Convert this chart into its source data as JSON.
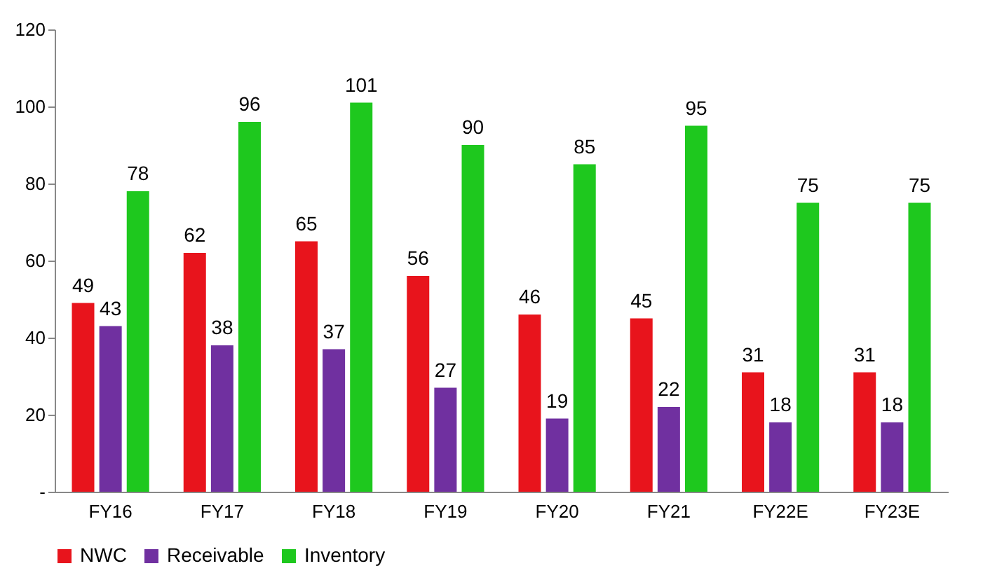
{
  "chart_data": {
    "type": "bar",
    "categories": [
      "FY16",
      "FY17",
      "FY18",
      "FY19",
      "FY20",
      "FY21",
      "FY22E",
      "FY23E"
    ],
    "series": [
      {
        "name": "NWC",
        "color": "#e8141c",
        "values": [
          49,
          62,
          65,
          56,
          46,
          45,
          31,
          31
        ]
      },
      {
        "name": "Receivable",
        "color": "#7030a0",
        "values": [
          43,
          38,
          37,
          27,
          19,
          22,
          18,
          18
        ]
      },
      {
        "name": "Inventory",
        "color": "#1ec81e",
        "values": [
          78,
          96,
          101,
          90,
          85,
          95,
          75,
          75
        ]
      }
    ],
    "ylim": [
      0,
      120
    ],
    "yticks": [
      {
        "value": 0,
        "label": "-"
      },
      20,
      40,
      60,
      80,
      100,
      120
    ],
    "grid": false,
    "legend": "bottom",
    "data_labels": true
  }
}
